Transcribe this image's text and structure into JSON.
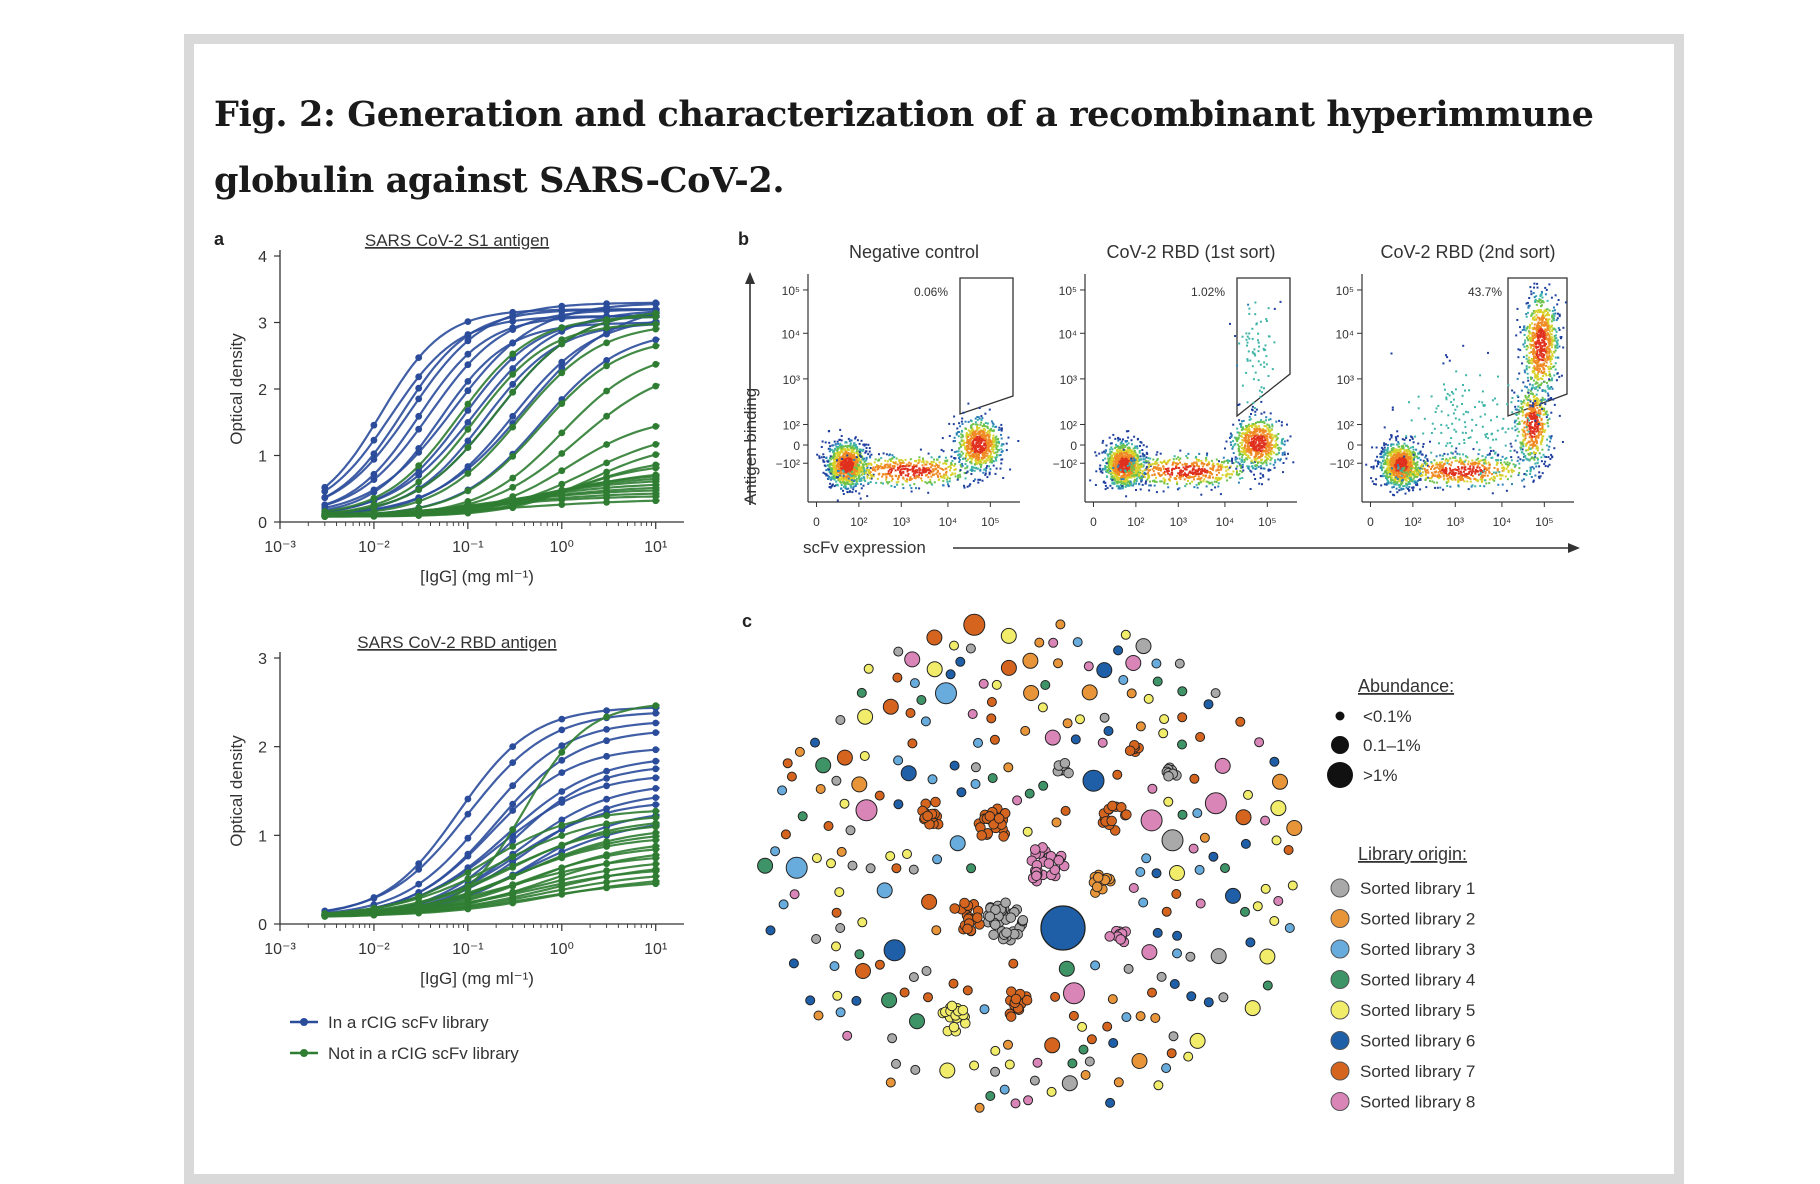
{
  "title": "Fig. 2: Generation and characterization of a recombinant hyperimmune globulin against SARS-CoV-2.",
  "colors": {
    "in_library": "#2b4c9b",
    "not_in_library": "#2f7d32",
    "frame": "#d9d9d9"
  },
  "panel_a": {
    "label": "a",
    "legend": [
      {
        "name": "In a rCIG scFv library",
        "color": "#2b4c9b"
      },
      {
        "name": "Not in a rCIG scFv library",
        "color": "#2f7d32"
      }
    ],
    "chart_data": [
      {
        "type": "line",
        "title": "SARS CoV-2 S1 antigen",
        "xlabel": "[IgG] (mg ml⁻¹)",
        "ylabel": "Optical density",
        "xscale": "log",
        "xlim": [
          0.001,
          20
        ],
        "ylim": [
          0,
          4
        ],
        "x_ticks": [
          "10⁻³",
          "10⁻²",
          "10⁻¹",
          "10⁰",
          "10¹"
        ],
        "y_ticks": [
          "0",
          "1",
          "2",
          "3",
          "4"
        ],
        "x_points": [
          0.003,
          0.01,
          0.03,
          0.1,
          0.3,
          1,
          3,
          10
        ],
        "series": [
          {
            "name": "In a rCIG scFv library",
            "group": "in",
            "curves": [
              {
                "top": 3.2,
                "ec50": 0.012,
                "slope": 1.3
              },
              {
                "top": 3.1,
                "ec50": 0.015,
                "slope": 1.2
              },
              {
                "top": 3.2,
                "ec50": 0.02,
                "slope": 1.2
              },
              {
                "top": 3.3,
                "ec50": 0.025,
                "slope": 1.1
              },
              {
                "top": 3.1,
                "ec50": 0.03,
                "slope": 1.2
              },
              {
                "top": 3.2,
                "ec50": 0.04,
                "slope": 1.1
              },
              {
                "top": 3.0,
                "ec50": 0.05,
                "slope": 1.2
              },
              {
                "top": 3.3,
                "ec50": 0.07,
                "slope": 1.0
              },
              {
                "top": 3.1,
                "ec50": 0.09,
                "slope": 1.1
              },
              {
                "top": 3.2,
                "ec50": 0.12,
                "slope": 1.0
              },
              {
                "top": 3.0,
                "ec50": 0.15,
                "slope": 1.1
              },
              {
                "top": 3.2,
                "ec50": 0.2,
                "slope": 1.0
              },
              {
                "top": 3.1,
                "ec50": 0.3,
                "slope": 1.0
              },
              {
                "top": 3.3,
                "ec50": 0.4,
                "slope": 0.9
              },
              {
                "top": 2.9,
                "ec50": 0.6,
                "slope": 1.0
              }
            ]
          },
          {
            "name": "Not in a rCIG scFv library",
            "group": "not",
            "curves": [
              {
                "top": 3.1,
                "ec50": 0.08,
                "slope": 1.1
              },
              {
                "top": 3.0,
                "ec50": 0.12,
                "slope": 1.1
              },
              {
                "top": 3.2,
                "ec50": 0.2,
                "slope": 1.0
              },
              {
                "top": 3.0,
                "ec50": 0.35,
                "slope": 1.0
              },
              {
                "top": 2.8,
                "ec50": 0.6,
                "slope": 1.0
              },
              {
                "top": 2.6,
                "ec50": 1.0,
                "slope": 1.0
              },
              {
                "top": 2.4,
                "ec50": 1.5,
                "slope": 0.9
              },
              {
                "top": 1.6,
                "ec50": 1.2,
                "slope": 1.0
              },
              {
                "top": 1.4,
                "ec50": 1.8,
                "slope": 0.9
              },
              {
                "top": 1.2,
                "ec50": 2.0,
                "slope": 1.0
              },
              {
                "top": 1.0,
                "ec50": 1.5,
                "slope": 0.9
              },
              {
                "top": 0.9,
                "ec50": 1.2,
                "slope": 1.0
              },
              {
                "top": 0.8,
                "ec50": 0.9,
                "slope": 0.8
              },
              {
                "top": 0.75,
                "ec50": 0.6,
                "slope": 0.8
              },
              {
                "top": 0.7,
                "ec50": 0.5,
                "slope": 0.8
              },
              {
                "top": 0.65,
                "ec50": 0.4,
                "slope": 0.8
              },
              {
                "top": 0.6,
                "ec50": 0.3,
                "slope": 0.7
              },
              {
                "top": 0.55,
                "ec50": 0.3,
                "slope": 0.7
              },
              {
                "top": 0.5,
                "ec50": 0.2,
                "slope": 0.7
              },
              {
                "top": 0.45,
                "ec50": 0.2,
                "slope": 0.7
              },
              {
                "top": 0.4,
                "ec50": 0.15,
                "slope": 0.7
              },
              {
                "top": 0.35,
                "ec50": 0.3,
                "slope": 0.6
              }
            ]
          }
        ]
      },
      {
        "type": "line",
        "title": "SARS CoV-2 RBD antigen",
        "xlabel": "[IgG] (mg ml⁻¹)",
        "ylabel": "Optical density",
        "xscale": "log",
        "xlim": [
          0.001,
          20
        ],
        "ylim": [
          0,
          3
        ],
        "x_ticks": [
          "10⁻³",
          "10⁻²",
          "10⁻¹",
          "10⁰",
          "10¹"
        ],
        "y_ticks": [
          "0",
          "1",
          "2",
          "3"
        ],
        "x_points": [
          0.003,
          0.01,
          0.03,
          0.1,
          0.3,
          1,
          3,
          10
        ],
        "series": [
          {
            "name": "In a rCIG scFv library",
            "group": "in",
            "curves": [
              {
                "top": 2.45,
                "ec50": 0.08,
                "slope": 1.1
              },
              {
                "top": 2.4,
                "ec50": 0.1,
                "slope": 1.0
              },
              {
                "top": 2.3,
                "ec50": 0.15,
                "slope": 1.0
              },
              {
                "top": 2.2,
                "ec50": 0.2,
                "slope": 1.0
              },
              {
                "top": 2.0,
                "ec50": 0.18,
                "slope": 1.0
              },
              {
                "top": 1.9,
                "ec50": 0.25,
                "slope": 0.9
              },
              {
                "top": 1.8,
                "ec50": 0.3,
                "slope": 1.0
              },
              {
                "top": 1.7,
                "ec50": 0.22,
                "slope": 0.9
              },
              {
                "top": 1.6,
                "ec50": 0.35,
                "slope": 0.9
              },
              {
                "top": 1.5,
                "ec50": 0.4,
                "slope": 0.9
              },
              {
                "top": 1.4,
                "ec50": 0.3,
                "slope": 0.9
              },
              {
                "top": 1.3,
                "ec50": 0.5,
                "slope": 0.9
              },
              {
                "top": 1.2,
                "ec50": 0.45,
                "slope": 0.8
              }
            ]
          },
          {
            "name": "Not in a rCIG scFv library",
            "group": "not",
            "curves": [
              {
                "top": 2.5,
                "ec50": 0.4,
                "slope": 1.3
              },
              {
                "top": 1.3,
                "ec50": 0.15,
                "slope": 0.9
              },
              {
                "top": 1.25,
                "ec50": 0.2,
                "slope": 0.8
              },
              {
                "top": 1.2,
                "ec50": 0.3,
                "slope": 0.8
              },
              {
                "top": 1.15,
                "ec50": 0.25,
                "slope": 0.8
              },
              {
                "top": 1.1,
                "ec50": 0.4,
                "slope": 0.8
              },
              {
                "top": 1.05,
                "ec50": 0.35,
                "slope": 0.8
              },
              {
                "top": 1.0,
                "ec50": 0.3,
                "slope": 0.8
              },
              {
                "top": 0.95,
                "ec50": 0.5,
                "slope": 0.8
              },
              {
                "top": 0.9,
                "ec50": 0.4,
                "slope": 0.8
              },
              {
                "top": 0.85,
                "ec50": 0.6,
                "slope": 0.8
              },
              {
                "top": 0.8,
                "ec50": 0.3,
                "slope": 0.7
              },
              {
                "top": 0.75,
                "ec50": 0.5,
                "slope": 0.7
              },
              {
                "top": 0.7,
                "ec50": 0.7,
                "slope": 0.7
              },
              {
                "top": 0.65,
                "ec50": 0.4,
                "slope": 0.7
              },
              {
                "top": 0.6,
                "ec50": 0.6,
                "slope": 0.7
              },
              {
                "top": 0.55,
                "ec50": 0.8,
                "slope": 0.7
              },
              {
                "top": 0.5,
                "ec50": 0.5,
                "slope": 0.7
              }
            ]
          }
        ]
      }
    ]
  },
  "panel_b": {
    "label": "b",
    "y_axis_label": "Antigen binding",
    "x_axis_label": "scFv expression",
    "x_ticks": [
      "0",
      "10²",
      "10³",
      "10⁴",
      "10⁵"
    ],
    "y_ticks": [
      "−10²",
      "0",
      "10²",
      "10³",
      "10⁴",
      "10⁵"
    ],
    "plots": [
      {
        "title": "Negative control",
        "gate_percent": "0.06%"
      },
      {
        "title": "CoV-2 RBD (1st sort)",
        "gate_percent": "1.02%"
      },
      {
        "title": "CoV-2 RBD (2nd sort)",
        "gate_percent": "43.7%"
      }
    ]
  },
  "panel_c": {
    "label": "c",
    "abundance_title": "Abundance:",
    "abundance_items": [
      "<0.1%",
      "0.1–1%",
      ">1%"
    ],
    "origin_title": "Library origin:",
    "libraries": [
      {
        "name": "Sorted library 1",
        "color": "#a9a9a9"
      },
      {
        "name": "Sorted library 2",
        "color": "#e8953a"
      },
      {
        "name": "Sorted library 3",
        "color": "#67acdc"
      },
      {
        "name": "Sorted library 4",
        "color": "#3e9466"
      },
      {
        "name": "Sorted library 5",
        "color": "#f1ec6a"
      },
      {
        "name": "Sorted library 6",
        "color": "#1f5fa8"
      },
      {
        "name": "Sorted library 7",
        "color": "#d4641e"
      },
      {
        "name": "Sorted library 8",
        "color": "#d985b8"
      }
    ]
  }
}
